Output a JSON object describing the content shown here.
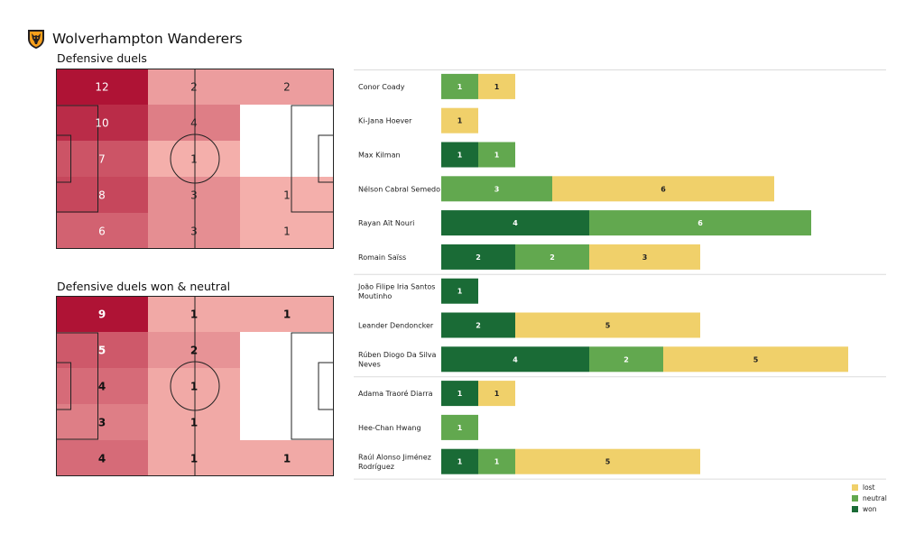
{
  "header": {
    "team_name": "Wolverhampton Wanderers",
    "crest_icon": "wolf-head-crest-icon"
  },
  "pitches": [
    {
      "title": "Defensive duels",
      "label_style": "light",
      "zones": [
        [
          12,
          2,
          2
        ],
        [
          10,
          4,
          null
        ],
        [
          7,
          1,
          null
        ],
        [
          8,
          3,
          1
        ],
        [
          6,
          3,
          1
        ]
      ]
    },
    {
      "title": "Defensive duels won & neutral",
      "label_style": "bold",
      "zones": [
        [
          9,
          1,
          1
        ],
        [
          5,
          2,
          null
        ],
        [
          4,
          1,
          null
        ],
        [
          3,
          1,
          null
        ],
        [
          4,
          1,
          1
        ]
      ]
    }
  ],
  "chart_data": {
    "type": "bar",
    "orientation": "horizontal",
    "stacked": true,
    "categories": [
      "Conor  Coady",
      "Ki-Jana Hoever",
      "Max Kilman",
      "Nélson Cabral Semedo",
      "Rayan Aït Nouri",
      "Romain Saïss",
      "João Filipe Iria Santos Moutinho",
      "Leander Dendoncker",
      "Rúben Diogo Da Silva Neves",
      "Adama Traoré Diarra",
      "Hee-Chan Hwang",
      "Raúl Alonso Jiménez Rodríguez"
    ],
    "category_lines": [
      [
        "Conor  Coady"
      ],
      [
        "Ki-Jana Hoever"
      ],
      [
        "Max Kilman"
      ],
      [
        "Nélson Cabral Semedo"
      ],
      [
        "Rayan Aït Nouri"
      ],
      [
        "Romain Saïss"
      ],
      [
        "João Filipe Iria Santos",
        "Moutinho"
      ],
      [
        "Leander Dendoncker"
      ],
      [
        "Rúben Diogo Da Silva",
        "Neves"
      ],
      [
        "Adama Traoré Diarra"
      ],
      [
        "Hee-Chan Hwang"
      ],
      [
        "Raúl Alonso Jiménez",
        "Rodríguez"
      ]
    ],
    "series": [
      {
        "name": "won",
        "color": "#1a6b36",
        "values": [
          0,
          0,
          1,
          0,
          4,
          2,
          1,
          2,
          4,
          1,
          0,
          1
        ]
      },
      {
        "name": "neutral",
        "color": "#62a84f",
        "values": [
          1,
          0,
          1,
          3,
          6,
          2,
          0,
          0,
          2,
          0,
          1,
          1
        ]
      },
      {
        "name": "lost",
        "color": "#f0d06a",
        "values": [
          1,
          1,
          0,
          6,
          0,
          3,
          0,
          5,
          5,
          1,
          0,
          5
        ]
      }
    ],
    "group_separators_after": [
      5,
      8
    ],
    "xlim": [
      0,
      11
    ],
    "legend": {
      "position": "bottom-right",
      "order": [
        "lost",
        "neutral",
        "won"
      ]
    }
  }
}
